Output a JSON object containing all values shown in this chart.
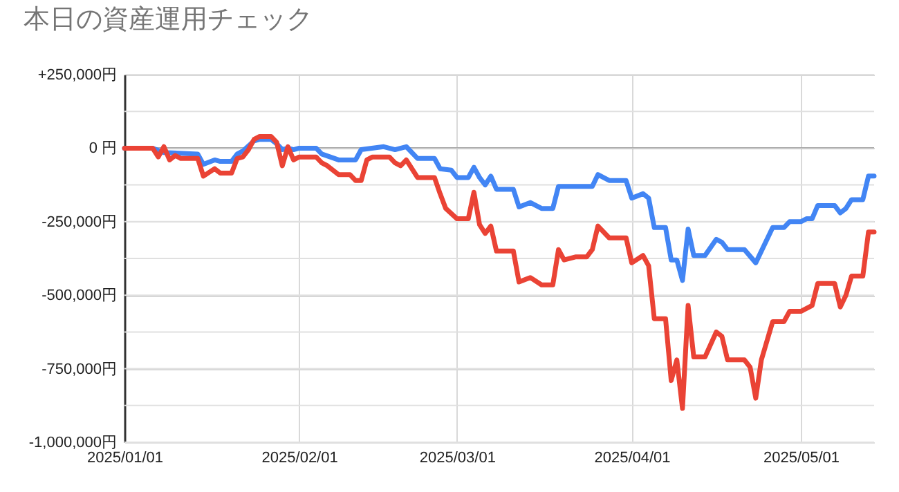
{
  "chart_data": {
    "type": "line",
    "title": "本日の資産運用チェック",
    "xlim": [
      "2025-01-01",
      "2025-05-14"
    ],
    "xticks": [
      {
        "value": "2025-01-01",
        "label": "2025/01/01"
      },
      {
        "value": "2025-02-01",
        "label": "2025/02/01"
      },
      {
        "value": "2025-03-01",
        "label": "2025/03/01"
      },
      {
        "value": "2025-04-01",
        "label": "2025/04/01"
      },
      {
        "value": "2025-05-01",
        "label": "2025/05/01"
      }
    ],
    "ylim": [
      -1000000,
      250000
    ],
    "yticks": [
      {
        "value": 250000,
        "label": "+250,000円"
      },
      {
        "value": 125000,
        "label": null
      },
      {
        "value": 0,
        "label": "0 円"
      },
      {
        "value": -125000,
        "label": null
      },
      {
        "value": -250000,
        "label": "-250,000円"
      },
      {
        "value": -375000,
        "label": null
      },
      {
        "value": -500000,
        "label": "-500,000円"
      },
      {
        "value": -625000,
        "label": null
      },
      {
        "value": -750000,
        "label": "-750,000円"
      },
      {
        "value": -875000,
        "label": null
      },
      {
        "value": -1000000,
        "label": "-1,000,000円"
      }
    ],
    "grid": true,
    "ref_lines": [
      {
        "axis": "y",
        "value": 0,
        "color": "#757575"
      }
    ],
    "series": [
      {
        "color": "#4285f4",
        "x": [
          "2025-01-01",
          "2025-01-06",
          "2025-01-08",
          "2025-01-14",
          "2025-01-15",
          "2025-01-17",
          "2025-01-18",
          "2025-01-20",
          "2025-01-21",
          "2025-01-22",
          "2025-01-24",
          "2025-01-25",
          "2025-01-27",
          "2025-01-28",
          "2025-01-29",
          "2025-01-30",
          "2025-01-31",
          "2025-02-01",
          "2025-02-04",
          "2025-02-05",
          "2025-02-08",
          "2025-02-11",
          "2025-02-12",
          "2025-02-16",
          "2025-02-18",
          "2025-02-20",
          "2025-02-22",
          "2025-02-25",
          "2025-02-26",
          "2025-02-28",
          "2025-03-01",
          "2025-03-03",
          "2025-03-04",
          "2025-03-05",
          "2025-03-06",
          "2025-03-07",
          "2025-03-08",
          "2025-03-11",
          "2025-03-12",
          "2025-03-14",
          "2025-03-16",
          "2025-03-18",
          "2025-03-19",
          "2025-03-25",
          "2025-03-26",
          "2025-03-28",
          "2025-03-31",
          "2025-04-01",
          "2025-04-03",
          "2025-04-04",
          "2025-04-05",
          "2025-04-07",
          "2025-04-08",
          "2025-04-09",
          "2025-04-10",
          "2025-04-11",
          "2025-04-12",
          "2025-04-14",
          "2025-04-16",
          "2025-04-17",
          "2025-04-18",
          "2025-04-21",
          "2025-04-23",
          "2025-04-26",
          "2025-04-28",
          "2025-04-29",
          "2025-05-01",
          "2025-05-02",
          "2025-05-03",
          "2025-05-04",
          "2025-05-07",
          "2025-05-08",
          "2025-05-09",
          "2025-05-10",
          "2025-05-12",
          "2025-05-13",
          "2025-05-14"
        ],
        "values": [
          0,
          0,
          -15000,
          -20000,
          -55000,
          -40000,
          -45000,
          -45000,
          -20000,
          -10000,
          25000,
          30000,
          30000,
          15000,
          -5000,
          0,
          -5000,
          0,
          0,
          -20000,
          -40000,
          -40000,
          -5000,
          5000,
          -5000,
          5000,
          -35000,
          -35000,
          -70000,
          -75000,
          -100000,
          -100000,
          -65000,
          -100000,
          -125000,
          -95000,
          -140000,
          -140000,
          -200000,
          -185000,
          -205000,
          -205000,
          -130000,
          -130000,
          -90000,
          -110000,
          -110000,
          -170000,
          -155000,
          -170000,
          -270000,
          -270000,
          -380000,
          -380000,
          -450000,
          -275000,
          -365000,
          -365000,
          -310000,
          -320000,
          -345000,
          -345000,
          -390000,
          -270000,
          -270000,
          -250000,
          -250000,
          -240000,
          -240000,
          -195000,
          -195000,
          -220000,
          -205000,
          -175000,
          -175000,
          -95000,
          -95000
        ]
      },
      {
        "color": "#ea4335",
        "x": [
          "2025-01-01",
          "2025-01-06",
          "2025-01-07",
          "2025-01-08",
          "2025-01-09",
          "2025-01-10",
          "2025-01-11",
          "2025-01-14",
          "2025-01-15",
          "2025-01-17",
          "2025-01-18",
          "2025-01-20",
          "2025-01-21",
          "2025-01-22",
          "2025-01-23",
          "2025-01-24",
          "2025-01-25",
          "2025-01-27",
          "2025-01-28",
          "2025-01-29",
          "2025-01-30",
          "2025-01-31",
          "2025-02-01",
          "2025-02-04",
          "2025-02-05",
          "2025-02-06",
          "2025-02-08",
          "2025-02-10",
          "2025-02-11",
          "2025-02-12",
          "2025-02-13",
          "2025-02-14",
          "2025-02-17",
          "2025-02-18",
          "2025-02-19",
          "2025-02-20",
          "2025-02-22",
          "2025-02-25",
          "2025-02-26",
          "2025-02-27",
          "2025-03-01",
          "2025-03-03",
          "2025-03-04",
          "2025-03-05",
          "2025-03-06",
          "2025-03-07",
          "2025-03-08",
          "2025-03-11",
          "2025-03-12",
          "2025-03-14",
          "2025-03-16",
          "2025-03-18",
          "2025-03-19",
          "2025-03-20",
          "2025-03-22",
          "2025-03-24",
          "2025-03-25",
          "2025-03-26",
          "2025-03-28",
          "2025-03-31",
          "2025-04-01",
          "2025-04-03",
          "2025-04-04",
          "2025-04-05",
          "2025-04-07",
          "2025-04-08",
          "2025-04-09",
          "2025-04-10",
          "2025-04-11",
          "2025-04-12",
          "2025-04-14",
          "2025-04-16",
          "2025-04-17",
          "2025-04-18",
          "2025-04-21",
          "2025-04-22",
          "2025-04-23",
          "2025-04-24",
          "2025-04-26",
          "2025-04-28",
          "2025-04-29",
          "2025-05-01",
          "2025-05-02",
          "2025-05-03",
          "2025-05-04",
          "2025-05-07",
          "2025-05-08",
          "2025-05-09",
          "2025-05-10",
          "2025-05-12",
          "2025-05-13",
          "2025-05-14"
        ],
        "values": [
          0,
          0,
          -30000,
          5000,
          -40000,
          -25000,
          -35000,
          -35000,
          -95000,
          -70000,
          -85000,
          -85000,
          -35000,
          -30000,
          -5000,
          30000,
          40000,
          40000,
          20000,
          -60000,
          5000,
          -40000,
          -30000,
          -30000,
          -50000,
          -60000,
          -90000,
          -90000,
          -110000,
          -110000,
          -40000,
          -30000,
          -30000,
          -50000,
          -60000,
          -40000,
          -100000,
          -100000,
          -155000,
          -205000,
          -240000,
          -240000,
          -150000,
          -260000,
          -290000,
          -265000,
          -350000,
          -350000,
          -455000,
          -440000,
          -465000,
          -465000,
          -345000,
          -380000,
          -370000,
          -370000,
          -345000,
          -265000,
          -305000,
          -305000,
          -390000,
          -365000,
          -400000,
          -580000,
          -580000,
          -790000,
          -720000,
          -885000,
          -535000,
          -710000,
          -710000,
          -625000,
          -640000,
          -720000,
          -720000,
          -745000,
          -850000,
          -720000,
          -590000,
          -590000,
          -555000,
          -555000,
          -545000,
          -535000,
          -460000,
          -460000,
          -540000,
          -500000,
          -435000,
          -435000,
          -285000,
          -285000
        ]
      }
    ]
  }
}
